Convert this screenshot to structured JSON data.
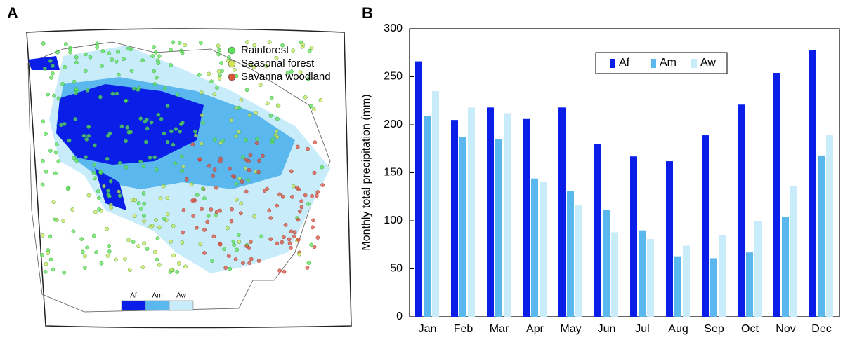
{
  "panel_a": {
    "label": "A",
    "legend": [
      {
        "name": "Rainforest",
        "color": "#5de05a"
      },
      {
        "name": "Seasonal forest",
        "color": "#d6e35a"
      },
      {
        "name": "Savanna woodland",
        "color": "#d9553c"
      }
    ]
  },
  "chart_data": {
    "type": "bar",
    "panel_label": "B",
    "y_label": "Monthly total precipitation (mm)",
    "categories": [
      "Jan",
      "Feb",
      "Mar",
      "Apr",
      "May",
      "Jun",
      "Jul",
      "Aug",
      "Sep",
      "Oct",
      "Nov",
      "Dec"
    ],
    "series": [
      {
        "name": "Af",
        "color": "#0a1ee8",
        "values": [
          266,
          205,
          218,
          206,
          218,
          180,
          167,
          162,
          189,
          221,
          254,
          278
        ]
      },
      {
        "name": "Am",
        "color": "#5bb8ee",
        "values": [
          209,
          187,
          185,
          144,
          131,
          111,
          90,
          63,
          61,
          67,
          104,
          168
        ]
      },
      {
        "name": "Aw",
        "color": "#c9ecfa",
        "values": [
          235,
          218,
          212,
          141,
          116,
          88,
          81,
          74,
          85,
          100,
          136,
          189
        ]
      }
    ],
    "ylim": [
      0,
      300
    ],
    "yticks": [
      0,
      50,
      100,
      150,
      200,
      250,
      300
    ],
    "grid": false,
    "legend_position": "top-center"
  }
}
